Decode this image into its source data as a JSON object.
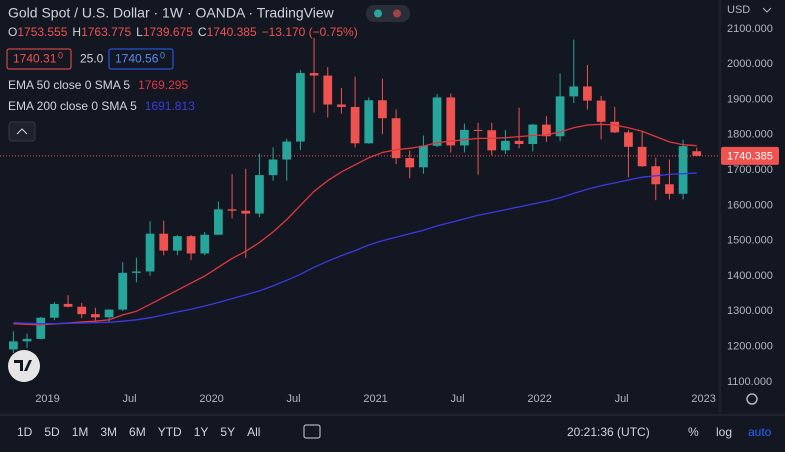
{
  "chart_data": {
    "type": "candlestick",
    "title": "Gold Spot / U.S. Dollar · 1W · OANDA · TradingView",
    "ohlc_prefixes": [
      "O",
      "H",
      "L",
      "C"
    ],
    "change": "−13.170 (−0.75%)",
    "x": [
      "2018-10",
      "2018-11",
      "2018-12",
      "2019-01",
      "2019-02",
      "2019-03",
      "2019-04",
      "2019-05",
      "2019-06",
      "2019-07",
      "2019-08",
      "2019-09",
      "2019-10",
      "2019-11",
      "2019-12",
      "2020-01",
      "2020-02",
      "2020-03",
      "2020-04",
      "2020-05",
      "2020-06",
      "2020-07",
      "2020-08",
      "2020-09",
      "2020-10",
      "2020-11",
      "2020-12",
      "2021-01",
      "2021-02",
      "2021-03",
      "2021-04",
      "2021-05",
      "2021-06",
      "2021-07",
      "2021-08",
      "2021-09",
      "2021-10",
      "2021-11",
      "2021-12",
      "2022-01",
      "2022-02",
      "2022-03",
      "2022-04",
      "2022-05",
      "2022-06",
      "2022-07",
      "2022-08",
      "2022-09",
      "2022-10",
      "2022-11",
      "2022-12"
    ],
    "open": [
      1192,
      1215,
      1222,
      1282,
      1321,
      1313,
      1292,
      1283,
      1305,
      1409,
      1413,
      1520,
      1472,
      1513,
      1464,
      1517,
      1589,
      1585,
      1577,
      1686,
      1730,
      1781,
      1975,
      1968,
      1886,
      1879,
      1776,
      1898,
      1847,
      1734,
      1708,
      1769,
      1906,
      1770,
      1814,
      1813,
      1756,
      1783,
      1774,
      1829,
      1796,
      1909,
      1937,
      1897,
      1837,
      1807,
      1766,
      1711,
      1660,
      1633,
      1753.555
    ],
    "high": [
      1243,
      1237,
      1284,
      1326,
      1346,
      1324,
      1310,
      1306,
      1439,
      1452,
      1555,
      1557,
      1516,
      1516,
      1525,
      1611,
      1689,
      1704,
      1747,
      1765,
      1789,
      1984,
      2075,
      1992,
      1933,
      1965,
      1906,
      1959,
      1872,
      1755,
      1798,
      1916,
      1917,
      1832,
      1834,
      1834,
      1814,
      1877,
      1831,
      1853,
      1974,
      2070,
      1998,
      1910,
      1879,
      1814,
      1808,
      1735,
      1730,
      1786,
      1763.775
    ],
    "low": [
      1182,
      1196,
      1221,
      1275,
      1311,
      1281,
      1266,
      1267,
      1301,
      1382,
      1401,
      1459,
      1459,
      1445,
      1459,
      1517,
      1563,
      1451,
      1567,
      1670,
      1670,
      1757,
      1863,
      1849,
      1860,
      1764,
      1775,
      1802,
      1717,
      1677,
      1690,
      1765,
      1750,
      1750,
      1687,
      1742,
      1746,
      1762,
      1753,
      1780,
      1782,
      1890,
      1872,
      1787,
      1805,
      1680,
      1709,
      1615,
      1617,
      1617,
      1739.675
    ],
    "close": [
      1215,
      1222,
      1282,
      1321,
      1313,
      1292,
      1283,
      1305,
      1409,
      1413,
      1520,
      1472,
      1513,
      1464,
      1517,
      1589,
      1585,
      1577,
      1686,
      1730,
      1781,
      1975,
      1968,
      1886,
      1879,
      1776,
      1898,
      1847,
      1734,
      1708,
      1769,
      1906,
      1770,
      1814,
      1813,
      1756,
      1783,
      1774,
      1829,
      1796,
      1909,
      1937,
      1897,
      1837,
      1807,
      1766,
      1711,
      1660,
      1633,
      1768,
      1740.385
    ],
    "up_color": "#26a69a",
    "down_color": "#ef5350",
    "series": [
      {
        "name": "EMA 50 close 0 SMA 5",
        "color": "#e0383e",
        "values": [
          1265,
          1263,
          1262,
          1264,
          1267,
          1270,
          1272,
          1276,
          1290,
          1300,
          1320,
          1340,
          1360,
          1380,
          1400,
          1425,
          1450,
          1470,
          1495,
          1525,
          1560,
          1600,
          1640,
          1670,
          1695,
          1715,
          1735,
          1750,
          1758,
          1762,
          1768,
          1778,
          1782,
          1786,
          1790,
          1790,
          1792,
          1795,
          1798,
          1800,
          1808,
          1820,
          1828,
          1830,
          1828,
          1820,
          1810,
          1795,
          1780,
          1772,
          1769.295
        ]
      },
      {
        "name": "EMA 200 close 0 SMA 5",
        "color": "#3b3be0",
        "values": [
          1268,
          1266,
          1265,
          1265,
          1266,
          1267,
          1268,
          1269,
          1272,
          1276,
          1282,
          1290,
          1298,
          1306,
          1315,
          1325,
          1336,
          1347,
          1358,
          1372,
          1388,
          1405,
          1425,
          1442,
          1458,
          1472,
          1488,
          1500,
          1510,
          1520,
          1530,
          1542,
          1552,
          1562,
          1572,
          1580,
          1588,
          1596,
          1604,
          1612,
          1622,
          1634,
          1646,
          1656,
          1664,
          1672,
          1680,
          1684,
          1688,
          1690,
          1691.813
        ]
      }
    ],
    "xlim": [
      2018.71,
      2023.1
    ],
    "xticks": [
      {
        "value": 2019,
        "label": "2019"
      },
      {
        "value": 2019.5,
        "label": "Jul"
      },
      {
        "value": 2020,
        "label": "2020"
      },
      {
        "value": 2020.5,
        "label": "Jul"
      },
      {
        "value": 2021,
        "label": "2021"
      },
      {
        "value": 2021.5,
        "label": "Jul"
      },
      {
        "value": 2022,
        "label": "2022"
      },
      {
        "value": 2022.5,
        "label": "Jul"
      },
      {
        "value": 2023,
        "label": "2023"
      }
    ],
    "ylim": [
      1063,
      2182
    ],
    "yticks": [
      {
        "value": 1100,
        "label": "1100.000"
      },
      {
        "value": 1200,
        "label": "1200.000"
      },
      {
        "value": 1300,
        "label": "1300.000"
      },
      {
        "value": 1400,
        "label": "1400.000"
      },
      {
        "value": 1500,
        "label": "1500.000"
      },
      {
        "value": 1600,
        "label": "1600.000"
      },
      {
        "value": 1700,
        "label": "1700.000"
      },
      {
        "value": 1800,
        "label": "1800.000"
      },
      {
        "value": 1900,
        "label": "1900.000"
      },
      {
        "value": 2000,
        "label": "2000.000"
      },
      {
        "value": 2100,
        "label": "2100.000"
      }
    ],
    "grid": false
  },
  "ui": {
    "currency": "USD",
    "sell_price": "1740.31",
    "sell_price_sup": "0",
    "spread": "25.0",
    "buy_price": "1740.56",
    "buy_price_sup": "0",
    "timeframes": [
      "1D",
      "5D",
      "1M",
      "3M",
      "6M",
      "YTD",
      "1Y",
      "5Y",
      "All"
    ],
    "clock": "20:21:36 (UTC)",
    "scale_buttons": [
      "%",
      "log",
      "auto"
    ]
  }
}
